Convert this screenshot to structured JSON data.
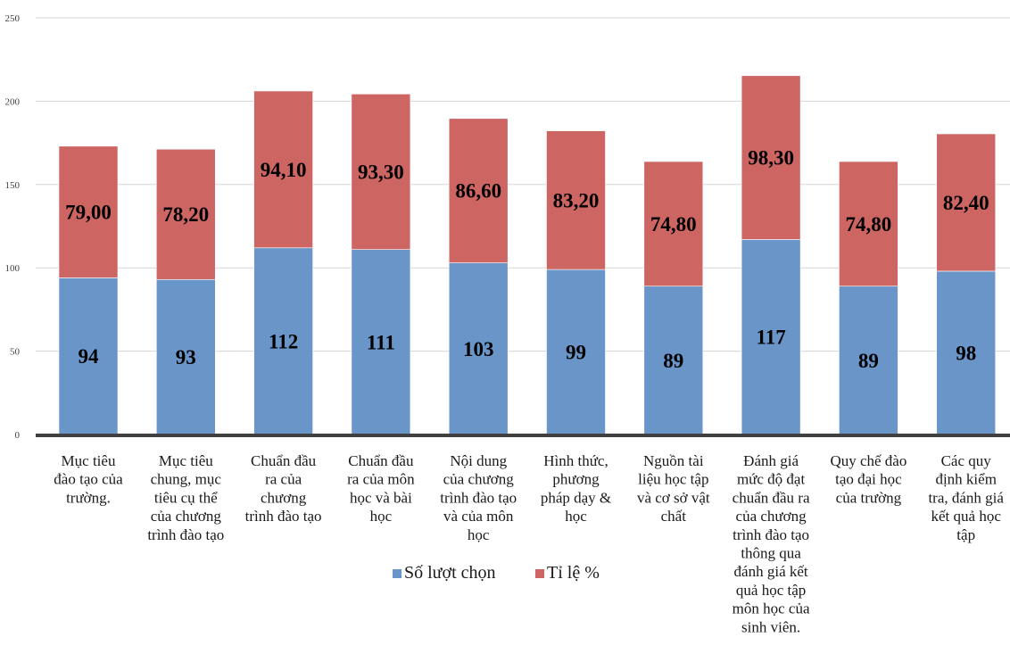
{
  "chart_data": {
    "type": "bar",
    "stacked": true,
    "title": "",
    "xlabel": "",
    "ylabel": "",
    "ylim": [
      0,
      250
    ],
    "yticks": [
      0,
      50,
      100,
      150,
      200,
      250
    ],
    "grid": true,
    "legend_position": "bottom",
    "categories": [
      [
        "Mục tiêu",
        "đào tạo của",
        "trường."
      ],
      [
        "Mục tiêu",
        "chung, mục",
        "tiêu cụ thể",
        "của chương",
        "trình đào tạo"
      ],
      [
        "Chuẩn đầu",
        "ra của",
        "chương",
        "trình đào tạo"
      ],
      [
        "Chuẩn đầu",
        "ra của môn",
        "học và bài",
        "học"
      ],
      [
        "Nội dung",
        "của chương",
        "trình đào tạo",
        "và của môn",
        "học"
      ],
      [
        "Hình thức,",
        "phương",
        "pháp dạy &",
        "học"
      ],
      [
        "Nguồn tài",
        "liệu học tập",
        "và cơ sở vật",
        "chất"
      ],
      [
        "Đánh giá",
        "mức độ đạt",
        "chuẩn đầu ra",
        "của chương",
        "trình đào tạo",
        "thông qua",
        "đánh giá kết",
        "quả học tập",
        "môn học của",
        "sinh viên."
      ],
      [
        "Quy chế đào",
        "tạo đại học",
        "của trường"
      ],
      [
        "Các quy",
        "định kiểm",
        "tra, đánh giá",
        "kết quả học",
        "tập"
      ]
    ],
    "series": [
      {
        "name": "Số lượt chọn",
        "color": "#6a95c9",
        "values": [
          94,
          93,
          112,
          111,
          103,
          99,
          89,
          117,
          89,
          98
        ],
        "labels": [
          "94",
          "93",
          "112",
          "111",
          "103",
          "99",
          "89",
          "117",
          "89",
          "98"
        ]
      },
      {
        "name": "Tỉ lệ %",
        "color": "#cd6562",
        "values": [
          79.0,
          78.2,
          94.1,
          93.3,
          86.6,
          83.2,
          74.8,
          98.3,
          74.8,
          82.4
        ],
        "labels": [
          "79,00",
          "78,20",
          "94,10",
          "93,30",
          "86,60",
          "83,20",
          "74,80",
          "98,30",
          "74,80",
          "82,40"
        ]
      }
    ]
  }
}
